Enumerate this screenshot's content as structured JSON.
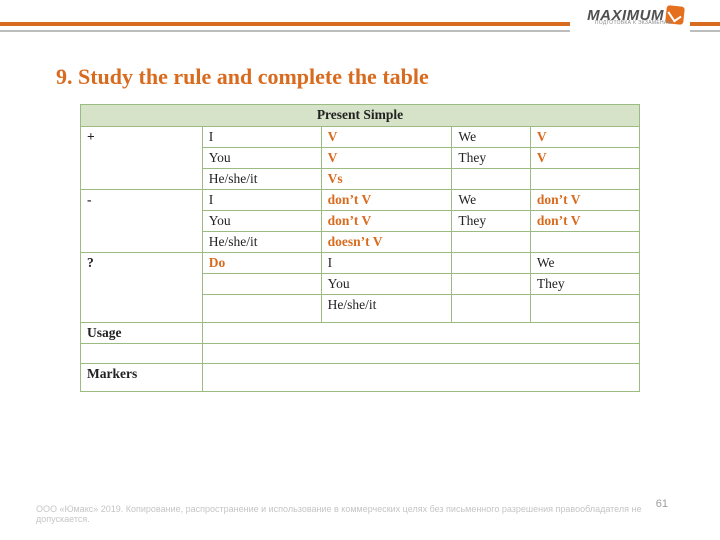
{
  "brand": {
    "name": "MAXIMUM",
    "tagline": "ПОДГОТОВКА К ЭКЗАМЕНАМ"
  },
  "heading": "9. Study the rule and complete the table",
  "colors": {
    "accent": "#d96b1f",
    "tableBorder": "#9bbb82",
    "tableHeaderBg": "#d6e3c8",
    "muted": "#c5c5c5"
  },
  "table": {
    "title": "Present Simple",
    "rows": [
      {
        "c0": "+",
        "c1": "I",
        "c2": "V",
        "c2accent": true,
        "c3": "We",
        "c4": "V",
        "c4accent": true
      },
      {
        "c0": "",
        "c1": "You",
        "c2": "V",
        "c2accent": true,
        "c3": "They",
        "c4": "V",
        "c4accent": true
      },
      {
        "c0": "",
        "c1": "He/she/it",
        "c2": "Vs",
        "c2accent": true,
        "c3": "",
        "c4": ""
      },
      {
        "c0": "-",
        "c1": "I",
        "c2": "don’t V",
        "c2accent": true,
        "c3": "We",
        "c4": "don’t V",
        "c4accent": true
      },
      {
        "c0": "",
        "c1": "You",
        "c2": "don’t V",
        "c2accent": true,
        "c3": "They",
        "c4": "don’t V",
        "c4accent": true
      },
      {
        "c0": "",
        "c1": "He/she/it",
        "c2": "doesn’t V",
        "c2accent": true,
        "c3": "",
        "c4": ""
      },
      {
        "c0": "?",
        "c1": "Do",
        "c1accent": true,
        "c2": "I",
        "c3": "",
        "c4": "We"
      },
      {
        "c0": "",
        "c1": "",
        "c2": "You",
        "c3": "",
        "c4": "They"
      },
      {
        "c0": "",
        "c1": "",
        "c2": "He/she/it",
        "c3": "",
        "c4": "",
        "tall": true
      }
    ],
    "usageLabel": "Usage",
    "markersLabel": "Markers"
  },
  "pageNumber": "61",
  "footer": "ООО «Юмакс» 2019. Копирование, распространение и использование в коммерческих целях без письменного разрешения правообладателя не допускается."
}
